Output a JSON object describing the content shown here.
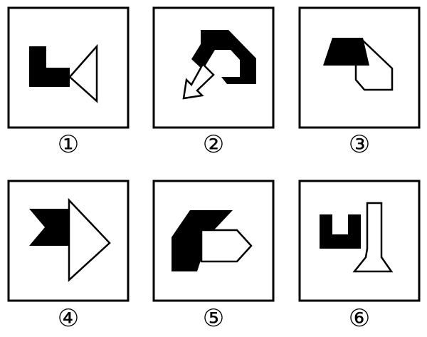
{
  "panels": [
    {
      "label": "①",
      "figure": "black-l-shape-with-white-triangle"
    },
    {
      "label": "②",
      "figure": "black-hook-shape-with-white-arrow"
    },
    {
      "label": "③",
      "figure": "black-trapezoid-with-white-pentagon"
    },
    {
      "label": "④",
      "figure": "black-flag-with-white-triangle"
    },
    {
      "label": "⑤",
      "figure": "black-parallelogram-with-white-pentagon-arrow"
    },
    {
      "label": "⑥",
      "figure": "black-u-shape-with-white-bottle"
    }
  ],
  "colors": {
    "fill_black": "#000000",
    "fill_white": "#ffffff",
    "stroke": "#000000"
  }
}
